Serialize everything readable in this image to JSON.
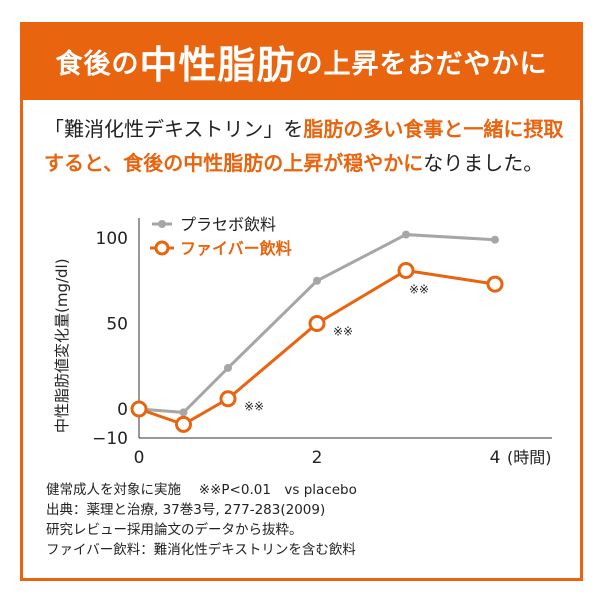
{
  "header": {
    "pre": "食後の",
    "big": "中性脂肪",
    "post": "の上昇をおだやかに"
  },
  "intro": {
    "p1": "「難消化性デキストリン」を",
    "h1": "脂肪の多い食事と一緒に摂取すると、食後の中性脂肪の上昇が穏やかに",
    "p2": "なりました。"
  },
  "colors": {
    "accent": "#e8640e",
    "placebo": "#a6a6a6",
    "fiber": "#e8640e"
  },
  "chart_data": {
    "type": "line",
    "ylabel": "中性脂肪値変化量(mg/dl)",
    "xunit": "(時間)",
    "xticks": [
      "0",
      "2",
      "4"
    ],
    "yticks": [
      "100",
      "50",
      "0",
      "−10"
    ],
    "xlim": [
      0,
      4.4
    ],
    "ylim": [
      -10,
      110
    ],
    "legend_position": "top-left",
    "x": [
      0,
      0.5,
      1,
      2,
      3,
      4
    ],
    "series": [
      {
        "name": "プラセボ飲料",
        "values": [
          0,
          -2,
          24,
          75,
          102,
          99
        ]
      },
      {
        "name": "ファイバー飲料",
        "values": [
          0,
          -9,
          6,
          50,
          81,
          73
        ]
      }
    ],
    "annotations": [
      {
        "x": 1,
        "text": "※※"
      },
      {
        "x": 2,
        "text": "※※"
      },
      {
        "x": 3,
        "text": "※※"
      }
    ]
  },
  "notes": [
    "健常成人を対象に実施　 ※※P<0.01　vs placebo",
    "出典：薬理と治療, 37巻3号, 277-283(2009)",
    "研究レビュー採用論文のデータから抜粋。",
    "ファイバー飲料：難消化性デキストリンを含む飲料"
  ]
}
